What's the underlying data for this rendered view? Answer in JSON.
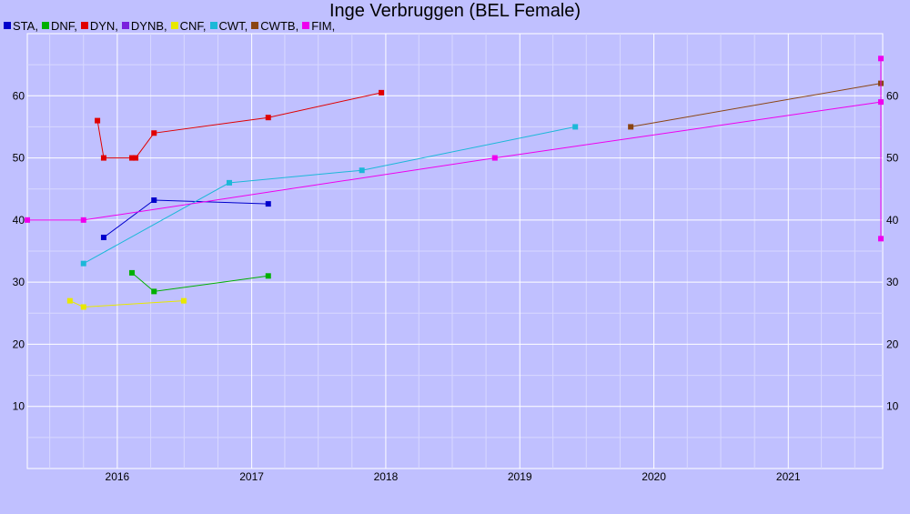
{
  "chart_data": {
    "type": "line",
    "title": "Inge Verbruggen (BEL Female)",
    "xlabel": "",
    "ylabel": "",
    "x_axis": "date",
    "xlim": [
      "2015-05-01",
      "2021-09-15"
    ],
    "ylim": [
      0,
      70
    ],
    "x_ticks": [
      "2016",
      "2017",
      "2018",
      "2019",
      "2020",
      "2021"
    ],
    "y_ticks": [
      10,
      20,
      30,
      40,
      50,
      60
    ],
    "grid": true,
    "legend_position": "top-left",
    "background": "#c0c0ff",
    "series": [
      {
        "name": "STA",
        "color": "#0000cc",
        "points": [
          {
            "x": "2015-11-25",
            "y": 37.2
          },
          {
            "x": "2016-04-10",
            "y": 43.2
          },
          {
            "x": "2017-02-15",
            "y": 42.6
          }
        ]
      },
      {
        "name": "DNF",
        "color": "#00b000",
        "points": [
          {
            "x": "2016-02-10",
            "y": 31.5
          },
          {
            "x": "2016-04-10",
            "y": 28.5
          },
          {
            "x": "2017-02-15",
            "y": 31.0
          }
        ]
      },
      {
        "name": "DYN",
        "color": "#e00000",
        "points": [
          {
            "x": "2015-11-08",
            "y": 56.0
          },
          {
            "x": "2015-11-25",
            "y": 50.0
          },
          {
            "x": "2016-02-10",
            "y": 50.0
          },
          {
            "x": "2016-02-20",
            "y": 50.0
          },
          {
            "x": "2016-04-10",
            "y": 54.0
          },
          {
            "x": "2017-02-15",
            "y": 56.5
          },
          {
            "x": "2017-12-20",
            "y": 60.5
          }
        ]
      },
      {
        "name": "DYNB",
        "color": "#7a22dd",
        "points": []
      },
      {
        "name": "CNF",
        "color": "#e8e800",
        "points": [
          {
            "x": "2015-08-25",
            "y": 27.0
          },
          {
            "x": "2015-10-01",
            "y": 26.0
          },
          {
            "x": "2016-06-30",
            "y": 27.0
          }
        ]
      },
      {
        "name": "CWT",
        "color": "#1cb8d8",
        "points": [
          {
            "x": "2015-10-01",
            "y": 33.0
          },
          {
            "x": "2016-11-01",
            "y": 46.0
          },
          {
            "x": "2017-10-28",
            "y": 48.0
          },
          {
            "x": "2019-06-01",
            "y": 55.0
          }
        ]
      },
      {
        "name": "CWTB",
        "color": "#8b4513",
        "points": [
          {
            "x": "2019-10-30",
            "y": 55.0
          },
          {
            "x": "2021-09-10",
            "y": 62.0
          }
        ]
      },
      {
        "name": "FIM",
        "color": "#ee00ee",
        "points": [
          {
            "x": "2015-05-01",
            "y": 40.0
          },
          {
            "x": "2015-10-01",
            "y": 40.0
          },
          {
            "x": "2018-10-25",
            "y": 50.0
          },
          {
            "x": "2021-09-10",
            "y": 59.0
          },
          {
            "x": "2021-09-10",
            "y": 37.0
          },
          {
            "x": "2021-09-10",
            "y": 66.0
          }
        ]
      }
    ]
  }
}
